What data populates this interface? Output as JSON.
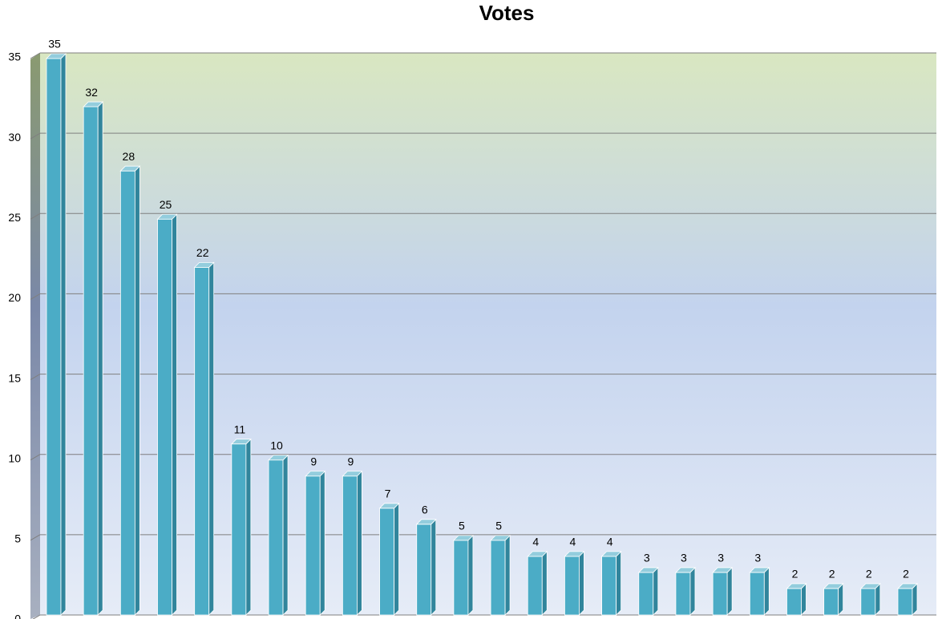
{
  "chart_data": {
    "type": "bar",
    "title": "Votes",
    "categories": [
      null,
      null,
      null,
      null,
      null,
      null,
      null,
      null,
      null,
      null,
      null,
      null,
      null,
      null,
      null,
      null,
      null,
      null,
      null,
      null,
      null,
      null,
      null,
      null
    ],
    "values": [
      35,
      32,
      28,
      25,
      22,
      11,
      10,
      9,
      9,
      7,
      6,
      5,
      5,
      4,
      4,
      4,
      3,
      3,
      3,
      3,
      2,
      2,
      2,
      2
    ],
    "color": "#4bacc6",
    "ylim": [
      0,
      35
    ],
    "yticks": [
      0,
      5,
      10,
      15,
      20,
      25,
      30,
      35
    ],
    "grid": true
  }
}
